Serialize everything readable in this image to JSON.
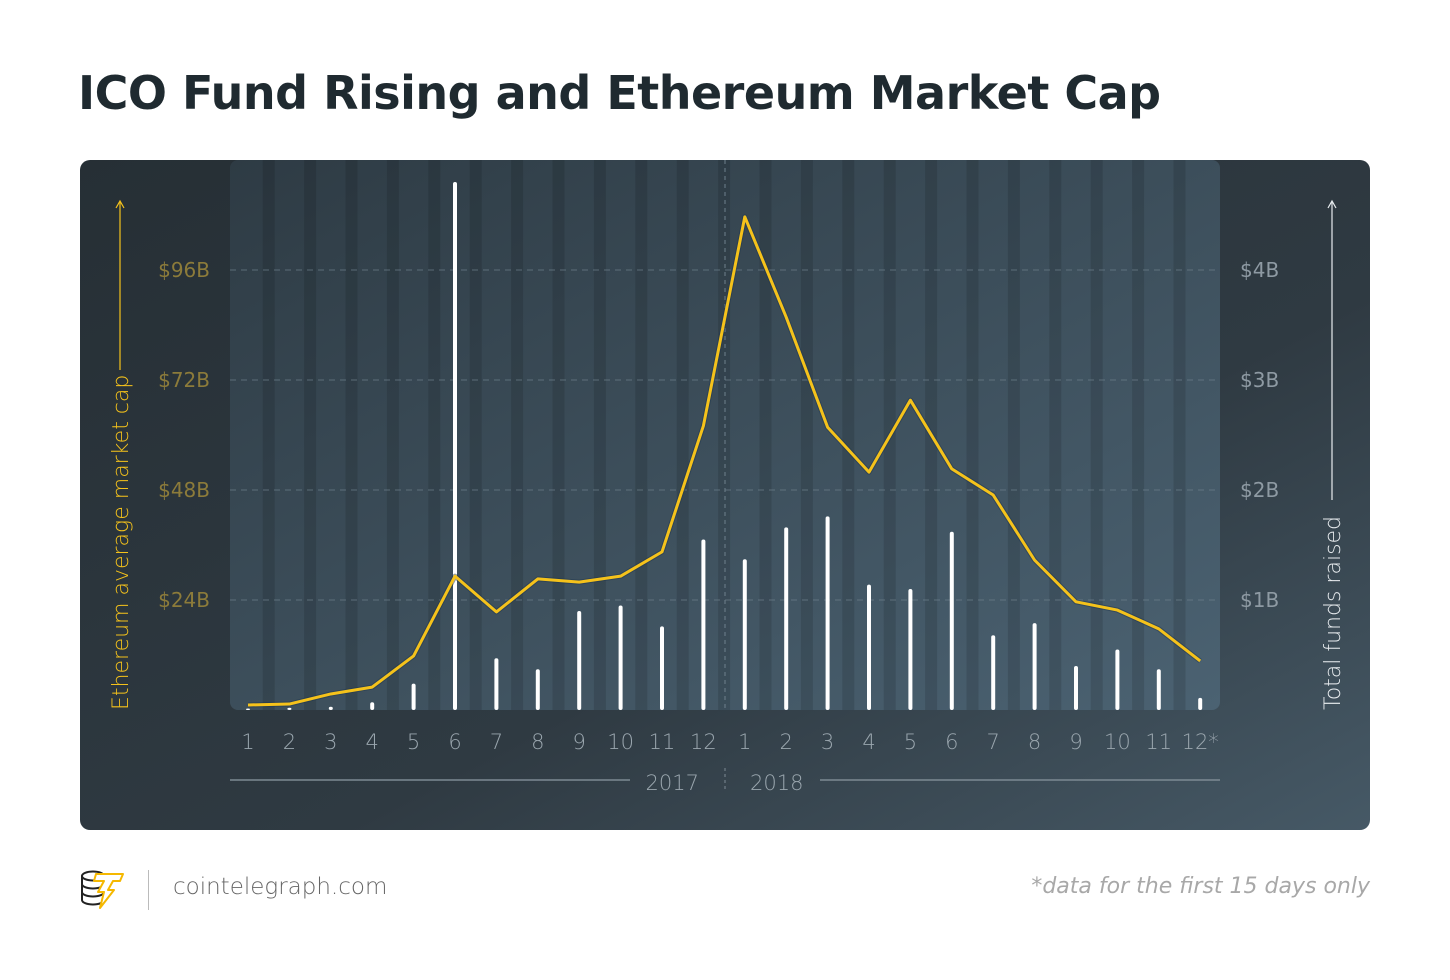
{
  "title": "ICO Fund Rising and Ethereum Market Cap",
  "colors": {
    "line": "#f5c21b",
    "bars": "#ffffff",
    "card": "#2b353c",
    "plot": "#3a4a55"
  },
  "chart_data": {
    "type": "bar+line",
    "title": "ICO Fund Rising and Ethereum Market Cap",
    "categories": [
      "1",
      "2",
      "3",
      "4",
      "5",
      "6",
      "7",
      "8",
      "9",
      "10",
      "11",
      "12",
      "1",
      "2",
      "3",
      "4",
      "5",
      "6",
      "7",
      "8",
      "9",
      "10",
      "11",
      "12*"
    ],
    "years": [
      "2017",
      "2018"
    ],
    "left_axis": {
      "label": "Ethereum average market cap",
      "ticks": [
        "$24B",
        "$48B",
        "$72B",
        "$96B"
      ],
      "tick_values": [
        24,
        48,
        72,
        96
      ],
      "range": [
        0,
        120
      ],
      "unit": "billion USD"
    },
    "right_axis": {
      "label": "Total funds raised",
      "ticks": [
        "$1B",
        "$2B",
        "$3B",
        "$4B"
      ],
      "tick_values": [
        1,
        2,
        3,
        4
      ],
      "range": [
        0,
        5
      ],
      "unit": "billion USD"
    },
    "series": [
      {
        "type": "bar",
        "axis": "right",
        "values": [
          0.01,
          0.02,
          0.03,
          0.07,
          0.24,
          4.8,
          0.47,
          0.37,
          0.9,
          0.95,
          0.76,
          1.55,
          1.37,
          1.66,
          1.76,
          1.14,
          1.1,
          1.62,
          0.68,
          0.79,
          0.4,
          0.55,
          0.37,
          0.11
        ]
      },
      {
        "type": "line",
        "axis": "left",
        "values": [
          1.1,
          1.3,
          3.5,
          5,
          11.8,
          29.2,
          21.4,
          28.6,
          27.9,
          29.2,
          34.5,
          62,
          107.6,
          85.7,
          61.7,
          51.9,
          67.6,
          52.6,
          46.9,
          32.7,
          23.6,
          21.8,
          17.7,
          10.7
        ]
      }
    ],
    "grid": true
  },
  "footer": {
    "site": "cointelegraph.com",
    "note": "*data for the first 15 days only"
  }
}
